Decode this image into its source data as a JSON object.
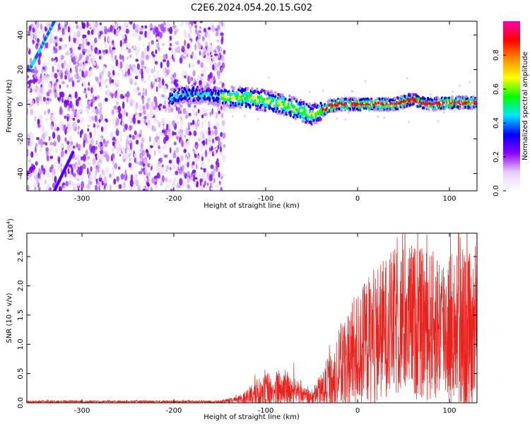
{
  "title": "C2E6.2024.054.20.15.G02",
  "chart_data": [
    {
      "type": "heatmap",
      "name": "spectrogram",
      "xlabel": "Height of straight line (km)",
      "ylabel": "Frequency (Hz)",
      "xlim": [
        -360,
        130
      ],
      "ylim": [
        -50,
        48
      ],
      "xticks": [
        -300,
        -200,
        -100,
        0,
        100
      ],
      "xtick_labels": [
        "-300",
        "-200",
        "-100",
        "0",
        "100"
      ],
      "yticks": [
        -40,
        -20,
        0,
        20,
        40
      ],
      "ytick_labels": [
        "-40",
        "-20",
        "0",
        "20",
        "40"
      ],
      "colorbar": {
        "label": "Normalized spectral amplitude",
        "range": [
          0.0,
          1.0
        ],
        "ticks": [
          0.0,
          0.2,
          0.4,
          0.6,
          0.8
        ],
        "tick_labels": [
          "0.0",
          "0.2",
          "0.4",
          "0.6",
          "0.8"
        ],
        "colors": [
          "#ffffff",
          "#e6ccff",
          "#8c00ff",
          "#0000ff",
          "#00e5ff",
          "#00ff00",
          "#ffff00",
          "#ff8c00",
          "#ff0000",
          "#ff00aa"
        ]
      },
      "features": {
        "broadband_noise_region_x": [
          -360,
          -145
        ],
        "streak_upper": {
          "x": [
            -357,
            -330
          ],
          "y": [
            20,
            48
          ]
        },
        "streak_lower": {
          "x": [
            -330,
            -310
          ],
          "y": [
            -50,
            -28
          ]
        },
        "band_center": {
          "x": [
            -200,
            -180,
            -160,
            -140,
            -120,
            -100,
            -80,
            -60,
            -50,
            -40,
            -30,
            -20,
            0,
            20,
            40,
            60,
            70,
            80,
            100,
            120,
            130
          ],
          "y": [
            4,
            6,
            5,
            4,
            4,
            2,
            0,
            -4,
            -6,
            -4,
            -1,
            0,
            0,
            0,
            0,
            3,
            1,
            0,
            1,
            1,
            1
          ]
        }
      }
    },
    {
      "type": "line",
      "name": "snr",
      "xlabel": "Height of straight line (km)",
      "ylabel": "SNR (10 * v/v)",
      "scale_label": "(x10",
      "scale_exponent": "4",
      "scale_close": ")",
      "color": "#e8231e",
      "xlim": [
        -360,
        130
      ],
      "ylim": [
        0.0,
        2.9
      ],
      "xticks": [
        -300,
        -200,
        -100,
        0,
        100
      ],
      "xtick_labels": [
        "-300",
        "-200",
        "-100",
        "0",
        "100"
      ],
      "yticks": [
        0.0,
        0.5,
        1.0,
        1.5,
        2.0,
        2.5
      ],
      "ytick_labels": [
        "0.0",
        "0.5",
        "1.0",
        "1.5",
        "2.0",
        "2.5"
      ],
      "envelope": {
        "x": [
          -360,
          -150,
          -130,
          -110,
          -100,
          -90,
          -80,
          -70,
          -60,
          -50,
          -40,
          -30,
          -20,
          -10,
          0,
          10,
          20,
          30,
          40,
          50,
          60,
          70,
          80,
          90,
          100,
          110,
          120,
          130
        ],
        "base": [
          0.02,
          0.02,
          0.05,
          0.15,
          0.2,
          0.2,
          0.25,
          0.2,
          0.12,
          0.08,
          0.2,
          0.35,
          0.55,
          0.75,
          0.9,
          1.05,
          1.15,
          1.3,
          1.35,
          1.4,
          1.4,
          1.35,
          1.3,
          1.35,
          1.3,
          1.2,
          1.1,
          1.1
        ],
        "amp": [
          0.02,
          0.02,
          0.06,
          0.25,
          0.3,
          0.35,
          0.35,
          0.3,
          0.15,
          0.15,
          0.3,
          0.5,
          0.75,
          0.9,
          1.0,
          1.1,
          1.2,
          1.2,
          1.3,
          1.3,
          1.35,
          1.3,
          1.3,
          1.3,
          1.35,
          1.4,
          1.5,
          1.4
        ]
      },
      "peak": {
        "x": 110,
        "y": 2.9
      }
    }
  ]
}
